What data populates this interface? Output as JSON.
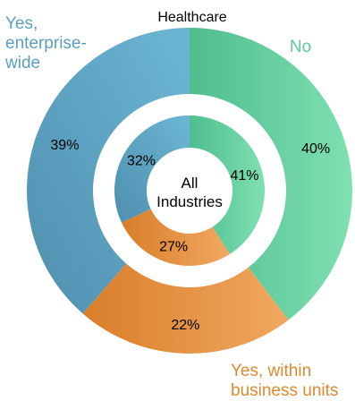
{
  "chart_data": {
    "type": "donut",
    "title": "Healthcare",
    "center_label_line1": "All",
    "center_label_line2": "Industries",
    "categories": [
      "No",
      "Yes, within business units",
      "Yes, enterprise-wide"
    ],
    "category_label_lines": [
      [
        "No"
      ],
      [
        "Yes, within",
        "business units"
      ],
      [
        "Yes,",
        "enterprise-",
        "wide"
      ]
    ],
    "rings": [
      {
        "name": "Healthcare",
        "ring": "outer",
        "values": [
          40,
          22,
          39
        ],
        "value_labels": [
          "40%",
          "22%",
          "39%"
        ]
      },
      {
        "name": "All Industries",
        "ring": "inner",
        "values": [
          41,
          27,
          32
        ],
        "value_labels": [
          "41%",
          "27%",
          "32%"
        ]
      }
    ],
    "colors": {
      "No": "#5cc99a",
      "Yes, within business units": "#e8923d",
      "Yes, enterprise-wide": "#5fa6c2",
      "No_label": "#5cc99a",
      "Yes, within business units_label": "#e08a30",
      "Yes, enterprise-wide_label": "#5aa0bd"
    }
  }
}
